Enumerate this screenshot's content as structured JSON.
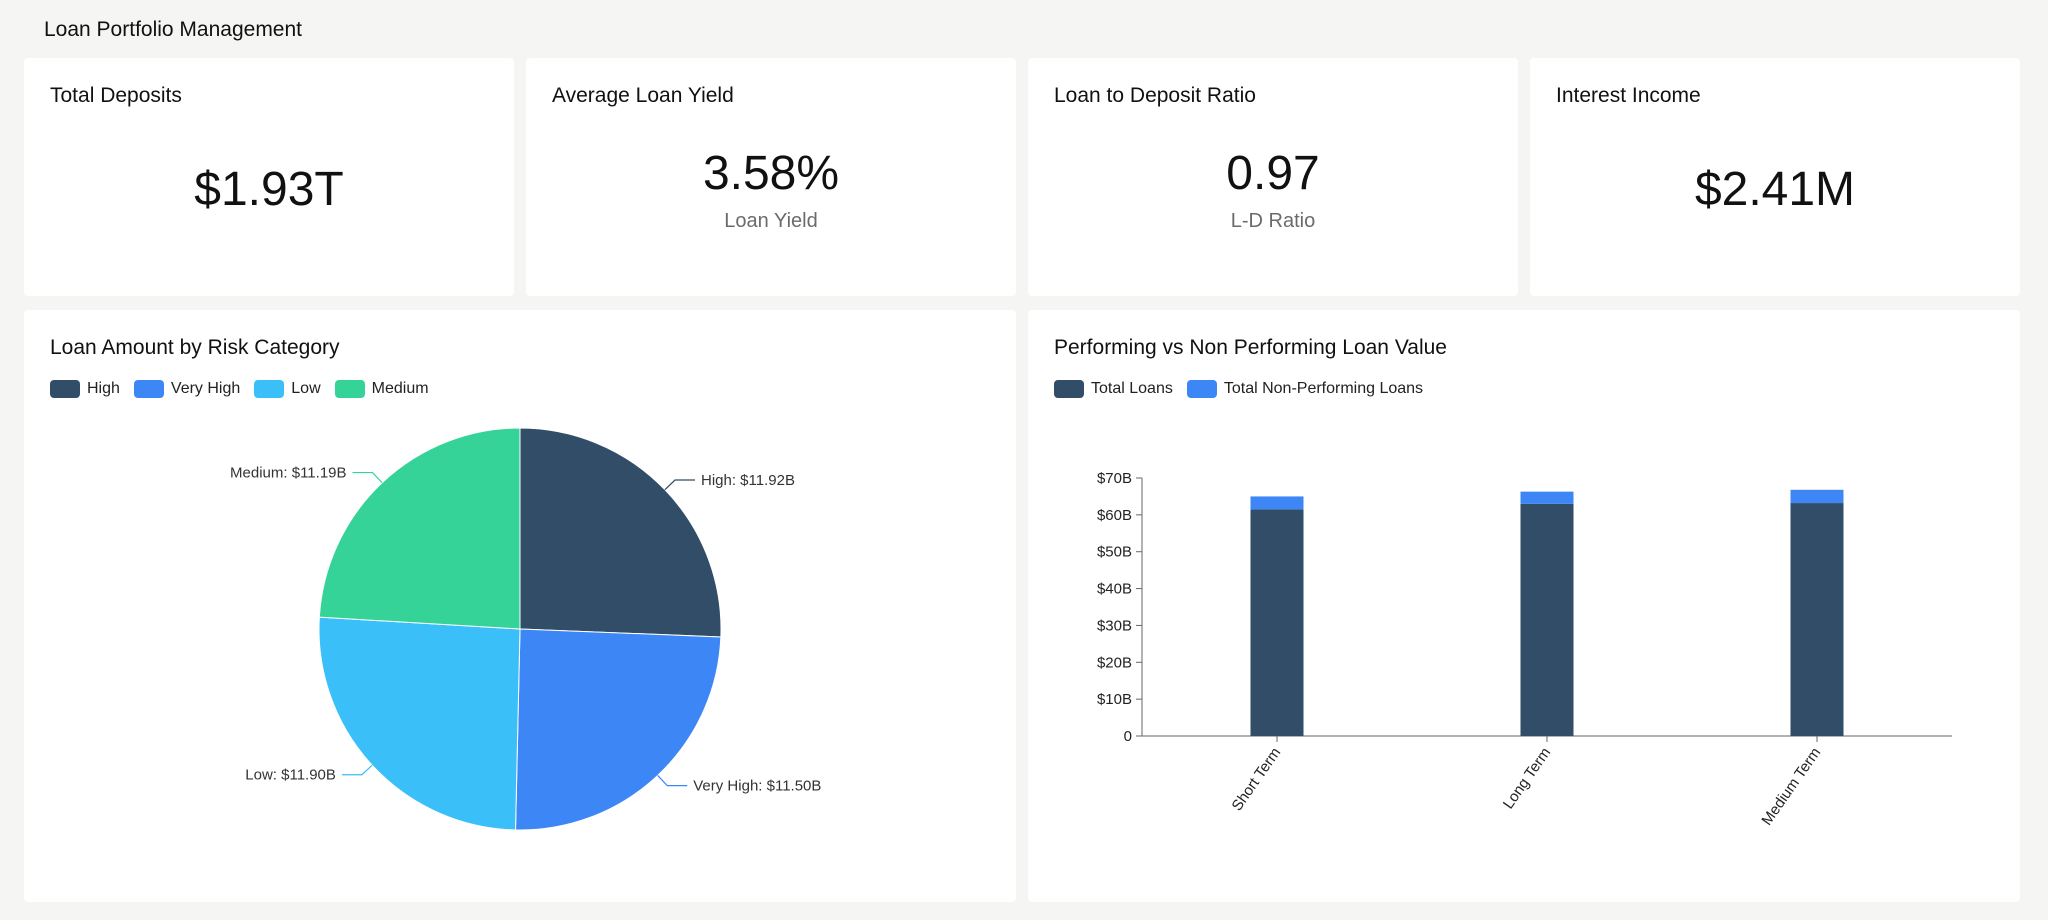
{
  "page": {
    "title": "Loan Portfolio Management"
  },
  "kpis": [
    {
      "title": "Total Deposits",
      "value": "$1.93T",
      "sub": ""
    },
    {
      "title": "Average Loan Yield",
      "value": "3.58%",
      "sub": "Loan Yield"
    },
    {
      "title": "Loan to Deposit Ratio",
      "value": "0.97",
      "sub": "L-D Ratio"
    },
    {
      "title": "Interest Income",
      "value": "$2.41M",
      "sub": ""
    }
  ],
  "colors": {
    "high": "#324d67",
    "very_high": "#3d86f5",
    "low": "#3bbff8",
    "medium": "#36d399",
    "total_loans": "#324d67",
    "non_performing": "#3d86f5"
  },
  "risk_panel": {
    "title": "Loan Amount by Risk Category",
    "legend": [
      {
        "label": "High",
        "color": "#324d67"
      },
      {
        "label": "Very High",
        "color": "#3d86f5"
      },
      {
        "label": "Low",
        "color": "#3bbff8"
      },
      {
        "label": "Medium",
        "color": "#36d399"
      }
    ]
  },
  "performing_panel": {
    "title": "Performing vs Non Performing Loan Value",
    "legend": [
      {
        "label": "Total Loans",
        "color": "#324d67"
      },
      {
        "label": "Total Non-Performing Loans",
        "color": "#3d86f5"
      }
    ]
  },
  "chart_data": [
    {
      "type": "pie",
      "title": "Loan Amount by Risk Category",
      "slices": [
        {
          "name": "High",
          "value": 11.92,
          "label": "High: $11.92B",
          "color": "#324d67"
        },
        {
          "name": "Very High",
          "value": 11.5,
          "label": "Very High: $11.50B",
          "color": "#3d86f5"
        },
        {
          "name": "Low",
          "value": 11.9,
          "label": "Low: $11.90B",
          "color": "#3bbff8"
        },
        {
          "name": "Medium",
          "value": 11.19,
          "label": "Medium: $11.19B",
          "color": "#36d399"
        }
      ],
      "unit": "B"
    },
    {
      "type": "bar",
      "stacked": true,
      "title": "Performing vs Non Performing Loan Value",
      "categories": [
        "Short Term",
        "Long Term",
        "Medium Term"
      ],
      "series": [
        {
          "name": "Total Loans",
          "values": [
            61.5,
            63,
            63.2
          ],
          "color": "#324d67"
        },
        {
          "name": "Total Non-Performing Loans",
          "values": [
            3.5,
            3.3,
            3.6
          ],
          "color": "#3d86f5"
        }
      ],
      "ylim": [
        0,
        70
      ],
      "yticks": [
        0,
        10,
        20,
        30,
        40,
        50,
        60,
        70
      ],
      "ytick_labels": [
        "0",
        "$10B",
        "$20B",
        "$30B",
        "$40B",
        "$50B",
        "$60B",
        "$70B"
      ]
    }
  ]
}
